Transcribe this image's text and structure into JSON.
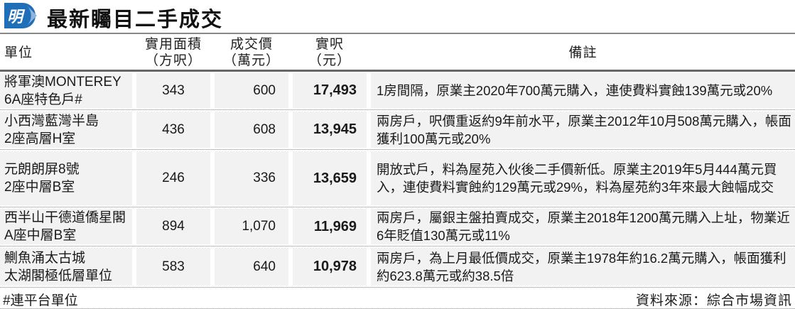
{
  "header": {
    "logo_text": "明",
    "title": "最新矚目二手成交",
    "brand_color": "#1e6fb8"
  },
  "columns": [
    {
      "line1": "單位",
      "line2": ""
    },
    {
      "line1": "實用面積",
      "line2": "（方呎）"
    },
    {
      "line1": "成交價",
      "line2": "（萬元）"
    },
    {
      "line1": "實呎",
      "line2": "（元）"
    },
    {
      "line1": "備註",
      "line2": ""
    }
  ],
  "rows": [
    {
      "unit1": "將軍澳MONTEREY",
      "unit2": "6A座特色戶#",
      "area": "343",
      "price": "600",
      "psf": "17,493",
      "note": "1房間隔，原業主2020年700萬元購入，連使費料實蝕139萬元或20%"
    },
    {
      "unit1": "小西灣藍灣半島",
      "unit2": "2座高層H室",
      "area": "436",
      "price": "608",
      "psf": "13,945",
      "note": "兩房戶，呎價重返約9年前水平，原業主2012年10月508萬元購入，帳面獲利100萬元或20%"
    },
    {
      "unit1": "元朗朗屏8號",
      "unit2": "2座中層B室",
      "area": "246",
      "price": "336",
      "psf": "13,659",
      "note": "開放式戶，料為屋苑入伙後二手價新低。原業主2019年5月444萬元買入，連使費料實蝕約129萬元或29%，料為屋苑約3年來最大蝕幅成交"
    },
    {
      "unit1": "西半山干德道僑星閣",
      "unit2": "A座中層B室",
      "area": "894",
      "price": "1,070",
      "psf": "11,969",
      "note": "兩房戶，屬銀主盤拍賣成交，原業主2018年1200萬元購入上址，物業近6年貶值130萬元或11%"
    },
    {
      "unit1": "鰂魚涌太古城",
      "unit2": "太湖閣極低層單位",
      "area": "583",
      "price": "640",
      "psf": "10,978",
      "note": "兩房戶，為上月最低價成交，原業主1978年約16.2萬元購入，帳面獲利約623.8萬元或約38.5倍"
    }
  ],
  "footer": {
    "footnote": "#連平台單位",
    "source": "資料來源：綜合市場資訊"
  }
}
